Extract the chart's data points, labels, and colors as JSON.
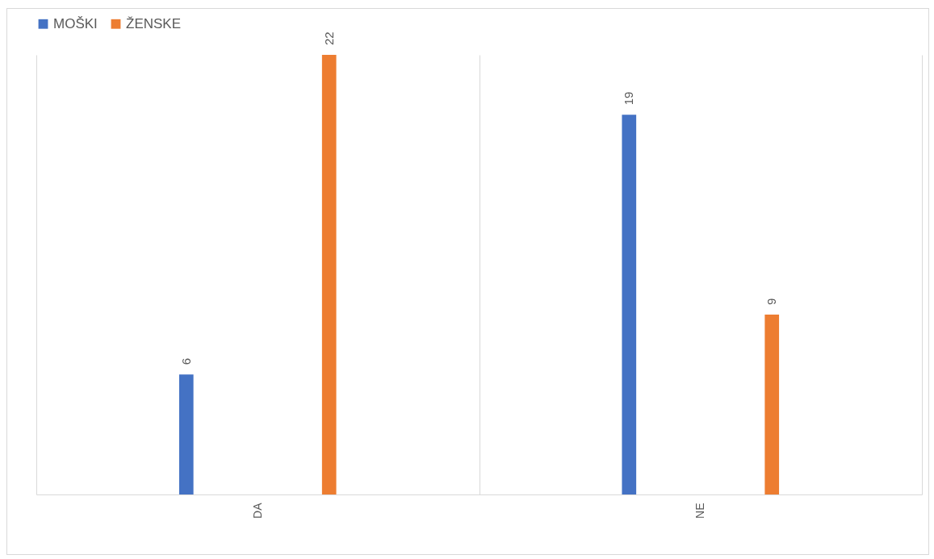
{
  "chart_data": {
    "type": "bar",
    "categories": [
      "DA",
      "NE"
    ],
    "series": [
      {
        "name": "MOŠKI",
        "color": "#4472c4",
        "values": [
          6,
          19
        ]
      },
      {
        "name": "ŽENSKE",
        "color": "#ed7d31",
        "values": [
          22,
          9
        ]
      }
    ],
    "data_labels": true,
    "grid": "x",
    "legend": "top"
  }
}
